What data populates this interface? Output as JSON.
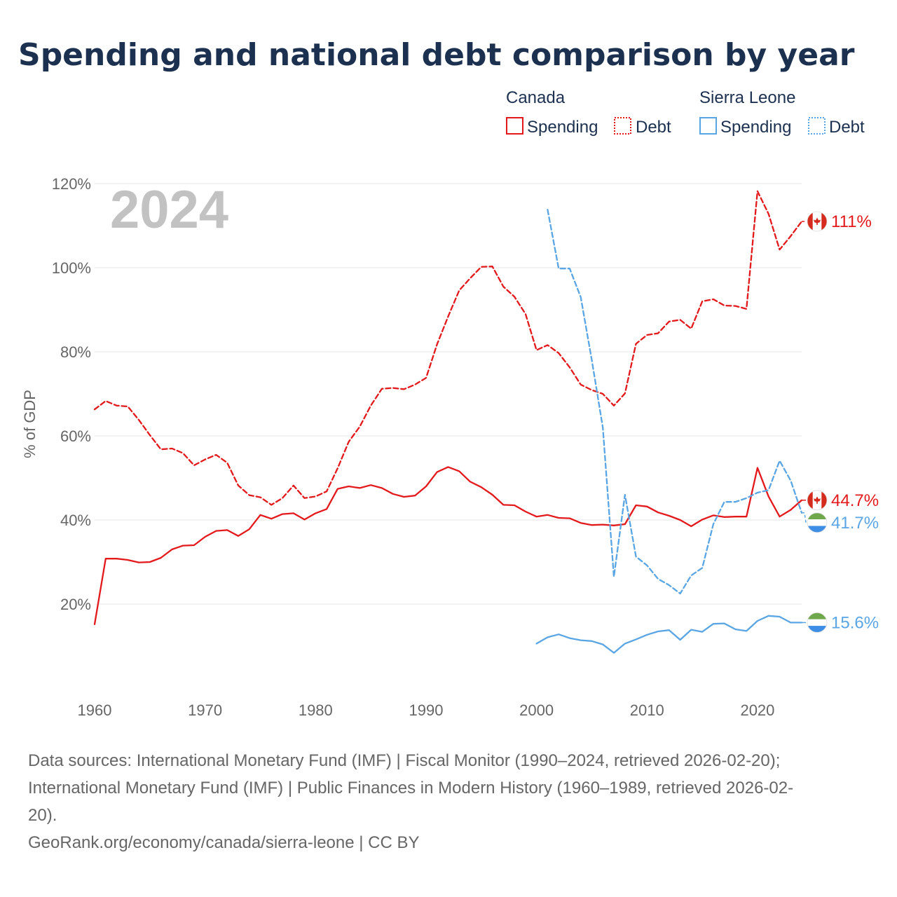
{
  "chart_data": {
    "type": "line",
    "title": "Spending and national debt comparison by year",
    "year_watermark": "2024",
    "ylabel": "% of GDP",
    "xlim": [
      1960,
      2024
    ],
    "ylim": [
      0,
      120
    ],
    "x_ticks": [
      1960,
      1970,
      1980,
      1990,
      2000,
      2010,
      2020
    ],
    "x_tick_labels": [
      "1960",
      "1970",
      "1980",
      "1990",
      "2000",
      "2010",
      "2020"
    ],
    "y_ticks": [
      20,
      40,
      60,
      80,
      100,
      120
    ],
    "y_tick_labels": [
      "20%",
      "40%",
      "60%",
      "80%",
      "100%",
      "120%"
    ],
    "legend": {
      "groups": [
        {
          "country": "Canada",
          "color": "#e3191c",
          "items": [
            "Spending",
            "Debt"
          ]
        },
        {
          "country": "Sierra Leone",
          "color": "#5aa6e4",
          "items": [
            "Spending",
            "Debt"
          ]
        }
      ]
    },
    "series": [
      {
        "name": "Canada Spending",
        "country": "Canada",
        "metric": "Spending",
        "color": "#e3191c",
        "dashed": false,
        "x": [
          1960,
          1961,
          1962,
          1963,
          1964,
          1965,
          1966,
          1967,
          1968,
          1969,
          1970,
          1971,
          1972,
          1973,
          1974,
          1975,
          1976,
          1977,
          1978,
          1979,
          1980,
          1981,
          1982,
          1983,
          1984,
          1985,
          1986,
          1987,
          1988,
          1989,
          1990,
          1991,
          1992,
          1993,
          1994,
          1995,
          1996,
          1997,
          1998,
          1999,
          2000,
          2001,
          2002,
          2003,
          2004,
          2005,
          2006,
          2007,
          2008,
          2009,
          2010,
          2011,
          2012,
          2013,
          2014,
          2015,
          2016,
          2017,
          2018,
          2019,
          2020,
          2021,
          2022,
          2023,
          2024
        ],
        "values": [
          15.2,
          30.8,
          30.8,
          30.5,
          29.9,
          30.0,
          31.0,
          33.0,
          33.9,
          34.0,
          36.0,
          37.4,
          37.6,
          36.2,
          37.8,
          41.2,
          40.3,
          41.4,
          41.6,
          40.1,
          41.6,
          42.6,
          47.4,
          48.0,
          47.6,
          48.3,
          47.6,
          46.2,
          45.5,
          45.8,
          48.0,
          51.4,
          52.6,
          51.6,
          49.1,
          47.8,
          46.0,
          43.6,
          43.5,
          42.0,
          40.8,
          41.2,
          40.5,
          40.4,
          39.3,
          38.8,
          38.9,
          38.7,
          39.0,
          43.5,
          43.2,
          41.8,
          41.0,
          40.0,
          38.5,
          40.1,
          41.1,
          40.7,
          40.8,
          40.8,
          52.4,
          45.6,
          40.8,
          42.4,
          44.7
        ],
        "end_label": "44.7%"
      },
      {
        "name": "Canada Debt",
        "country": "Canada",
        "metric": "Debt",
        "color": "#e3191c",
        "dashed": true,
        "x": [
          1960,
          1961,
          1962,
          1963,
          1964,
          1965,
          1966,
          1967,
          1968,
          1969,
          1970,
          1971,
          1972,
          1973,
          1974,
          1975,
          1976,
          1977,
          1978,
          1979,
          1980,
          1981,
          1982,
          1983,
          1984,
          1985,
          1986,
          1987,
          1988,
          1989,
          1990,
          1991,
          1992,
          1993,
          1994,
          1995,
          1996,
          1997,
          1998,
          1999,
          2000,
          2001,
          2002,
          2003,
          2004,
          2005,
          2006,
          2007,
          2008,
          2009,
          2010,
          2011,
          2012,
          2013,
          2014,
          2015,
          2016,
          2017,
          2018,
          2019,
          2020,
          2021,
          2022,
          2023,
          2024
        ],
        "values": [
          66.3,
          68.3,
          67.2,
          67.0,
          63.8,
          60.2,
          56.8,
          57.0,
          55.9,
          53.0,
          54.4,
          55.5,
          53.6,
          48.2,
          45.9,
          45.4,
          43.6,
          45.2,
          48.2,
          45.2,
          45.6,
          46.8,
          52.3,
          58.6,
          62.2,
          67.2,
          71.2,
          71.4,
          71.1,
          72.2,
          73.8,
          81.8,
          88.4,
          94.6,
          97.5,
          100.2,
          100.3,
          95.5,
          93.1,
          89.0,
          80.4,
          81.6,
          79.7,
          76.3,
          72.2,
          70.9,
          70.0,
          67.2,
          70.1,
          81.9,
          84.0,
          84.4,
          87.2,
          87.6,
          85.5,
          92.0,
          92.5,
          91.0,
          90.9,
          90.2,
          118.2,
          112.8,
          104.3,
          107.5,
          111.0
        ],
        "end_label": "111%"
      },
      {
        "name": "Sierra Leone Spending",
        "country": "Sierra Leone",
        "metric": "Spending",
        "color": "#5aa6e4",
        "dashed": false,
        "x": [
          2000,
          2001,
          2002,
          2003,
          2004,
          2005,
          2006,
          2007,
          2008,
          2009,
          2010,
          2011,
          2012,
          2013,
          2014,
          2015,
          2016,
          2017,
          2018,
          2019,
          2020,
          2021,
          2022,
          2023,
          2024
        ],
        "values": [
          10.6,
          12.1,
          12.8,
          11.9,
          11.4,
          11.2,
          10.4,
          8.4,
          10.6,
          11.6,
          12.7,
          13.5,
          13.8,
          11.5,
          13.9,
          13.4,
          15.3,
          15.4,
          14.0,
          13.6,
          16.0,
          17.2,
          17.0,
          15.6,
          15.6
        ],
        "end_label": "15.6%"
      },
      {
        "name": "Sierra Leone Debt",
        "country": "Sierra Leone",
        "metric": "Debt",
        "color": "#5aa6e4",
        "dashed": true,
        "x": [
          2001,
          2002,
          2003,
          2004,
          2005,
          2006,
          2007,
          2008,
          2009,
          2010,
          2011,
          2012,
          2013,
          2014,
          2015,
          2016,
          2017,
          2018,
          2019,
          2020,
          2021,
          2022,
          2023,
          2024
        ],
        "values": [
          113.8,
          99.8,
          99.8,
          93.0,
          78.0,
          62.0,
          26.5,
          46.0,
          31.3,
          29.2,
          26.0,
          24.5,
          22.5,
          26.8,
          28.6,
          39.0,
          44.3,
          44.3,
          45.2,
          46.5,
          47.1,
          54.1,
          49.4,
          41.7
        ],
        "end_label": "41.7%"
      }
    ]
  },
  "sources": {
    "line1": "Data sources: International Monetary Fund (IMF) | Fiscal Monitor (1990–2024, retrieved 2026-02-20);",
    "line2": "International Monetary Fund (IMF) | Public Finances in Modern History (1960–1989, retrieved 2026-02-",
    "line3": "20).",
    "credit": "GeoRank.org/economy/canada/sierra-leone | CC BY"
  }
}
